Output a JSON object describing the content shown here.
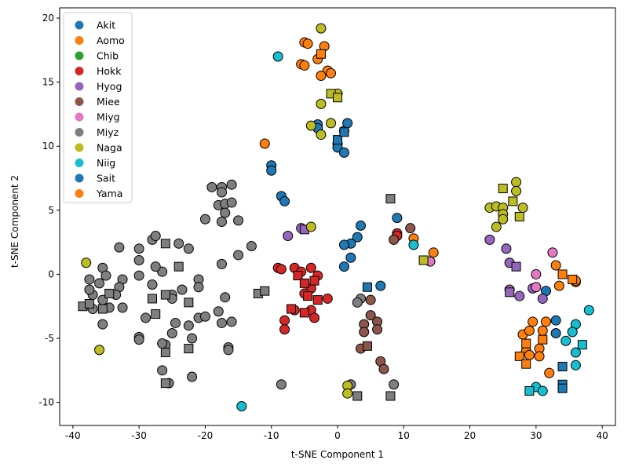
{
  "chart_data": {
    "type": "scatter",
    "title": "",
    "xlabel": "t-SNE Component 1",
    "ylabel": "t-SNE Component 2",
    "xlim": [
      -42,
      42
    ],
    "ylim": [
      -11.8,
      20.8
    ],
    "xticks": [
      "-40",
      "-30",
      "-20",
      "-10",
      "0",
      "10",
      "20",
      "30",
      "40"
    ],
    "yticks": [
      "-10",
      "-5",
      "0",
      "5",
      "10",
      "15",
      "20"
    ],
    "grid": false,
    "legend_position": "top-left",
    "legend": [
      {
        "name": "Akit",
        "color": "#1f77b4"
      },
      {
        "name": "Aomo",
        "color": "#ff7f0e"
      },
      {
        "name": "Chib",
        "color": "#2ca02c"
      },
      {
        "name": "Hokk",
        "color": "#d62728"
      },
      {
        "name": "Hyog",
        "color": "#9467bd"
      },
      {
        "name": "Miee",
        "color": "#8c564b"
      },
      {
        "name": "Miyg",
        "color": "#e377c2"
      },
      {
        "name": "Miyz",
        "color": "#7f7f7f"
      },
      {
        "name": "Naga",
        "color": "#bcbd22"
      },
      {
        "name": "Niig",
        "color": "#17becf"
      },
      {
        "name": "Sait",
        "color": "#1f77b4"
      },
      {
        "name": "Yama",
        "color": "#ff7f0e"
      }
    ],
    "groups": [
      {
        "color": "#7f7f7f",
        "circles": [
          [
            -33,
            2.1
          ],
          [
            -30,
            2
          ],
          [
            -30,
            1.1
          ],
          [
            -28,
            2.7
          ],
          [
            -27.5,
            3
          ],
          [
            -24,
            2.4
          ],
          [
            -22.5,
            2
          ],
          [
            -19,
            6.8
          ],
          [
            -17.5,
            6.8
          ],
          [
            -16,
            7
          ],
          [
            -17.5,
            6.4
          ],
          [
            -18,
            5.4
          ],
          [
            -17,
            5.5
          ],
          [
            -17,
            4.8
          ],
          [
            -16,
            5.6
          ],
          [
            -20,
            4.3
          ],
          [
            -17.5,
            4.1
          ],
          [
            -15,
            4.2
          ],
          [
            -15,
            1.5
          ],
          [
            -13,
            2.2
          ],
          [
            -17.5,
            0.8
          ],
          [
            -21,
            -0.4
          ],
          [
            -21,
            -1
          ],
          [
            -23.5,
            -1.2
          ],
          [
            -25,
            -1.6
          ],
          [
            -25,
            -1.9
          ],
          [
            -26.5,
            0.2
          ],
          [
            -27.5,
            0.6
          ],
          [
            -28,
            -0.8
          ],
          [
            -30,
            -0.1
          ],
          [
            -32.5,
            -0.4
          ],
          [
            -33,
            -1
          ],
          [
            -33.5,
            -1.6
          ],
          [
            -36,
            -0.7
          ],
          [
            -37,
            -1.6
          ],
          [
            -37.5,
            -1.2
          ],
          [
            -37.5,
            -0.4
          ],
          [
            -35.5,
            0.5
          ],
          [
            -35,
            -0.1
          ],
          [
            -34.5,
            -2.6
          ],
          [
            -35.5,
            -2
          ],
          [
            -37,
            -2.7
          ],
          [
            -32.5,
            -2.6
          ],
          [
            -29,
            -3.4
          ],
          [
            -24.5,
            -3.8
          ],
          [
            -22.5,
            -4
          ],
          [
            -21,
            -3.4
          ],
          [
            -20,
            -3.3
          ],
          [
            -18,
            -2.9
          ],
          [
            -17,
            -1.8
          ],
          [
            -17.5,
            -3.8
          ],
          [
            -16,
            -3.7
          ],
          [
            -16.5,
            -5.7
          ],
          [
            -16.5,
            -5.9
          ],
          [
            -22,
            -5
          ],
          [
            -25,
            -4.6
          ],
          [
            -26,
            -5.5
          ],
          [
            -26.5,
            -5.4
          ],
          [
            -26.5,
            -7.5
          ],
          [
            -25.5,
            -8.5
          ],
          [
            -22,
            -8
          ],
          [
            -35.5,
            -3.9
          ],
          [
            -30,
            -4.9
          ],
          [
            -30,
            -5.1
          ],
          [
            -8.5,
            -8.6
          ],
          [
            2,
            -8.6
          ],
          [
            8.5,
            -8.6
          ],
          [
            3.5,
            -1.9
          ],
          [
            3,
            -2.2
          ]
        ],
        "squares": [
          [
            -26,
            2.4
          ],
          [
            -24,
            0.6
          ],
          [
            -26,
            -1.6
          ],
          [
            -28,
            -1.9
          ],
          [
            -22.5,
            -2.2
          ],
          [
            -27.5,
            -3.1
          ],
          [
            -34.5,
            -1.5
          ],
          [
            -35.5,
            -2.7
          ],
          [
            -38.5,
            -2.5
          ],
          [
            -37.5,
            -2.3
          ],
          [
            -22.5,
            -5.8
          ],
          [
            -26,
            -6.1
          ],
          [
            -26,
            -8.5
          ],
          [
            -12,
            -1.5
          ],
          [
            -11,
            -1.3
          ],
          [
            8,
            5.9
          ],
          [
            3,
            -9.5
          ],
          [
            8,
            -9.5
          ]
        ]
      },
      {
        "color": "#1f77b4",
        "circles": [
          [
            -10,
            8.5
          ],
          [
            -10,
            8.1
          ],
          [
            -8.5,
            6.1
          ],
          [
            -8,
            5.7
          ],
          [
            -3,
            11.7
          ],
          [
            -3,
            11.4
          ],
          [
            1,
            11.2
          ],
          [
            1.5,
            11.8
          ],
          [
            0,
            10.2
          ],
          [
            0,
            9.9
          ],
          [
            1,
            9.5
          ],
          [
            3.5,
            3.8
          ],
          [
            3,
            2.9
          ],
          [
            2,
            2.4
          ],
          [
            1,
            2.3
          ],
          [
            2,
            1.3
          ],
          [
            1,
            0.6
          ],
          [
            9,
            4.4
          ],
          [
            6.5,
            -0.9
          ],
          [
            33,
            -4.6
          ],
          [
            33,
            -3.6
          ],
          [
            31.5,
            -1.3
          ]
        ],
        "squares": [
          [
            0,
            10.5
          ],
          [
            1,
            11.1
          ],
          [
            4.5,
            -1
          ],
          [
            34,
            -7.2
          ],
          [
            34,
            -8.6
          ],
          [
            34,
            -8.9
          ]
        ]
      },
      {
        "color": "#ff7f0e",
        "circles": [
          [
            -11,
            10.2
          ],
          [
            -5,
            18.1
          ],
          [
            -4.5,
            18
          ],
          [
            -2,
            17.8
          ],
          [
            -5.5,
            16.4
          ],
          [
            -5,
            16.3
          ],
          [
            -3,
            16.8
          ],
          [
            -1.5,
            15.9
          ],
          [
            -1,
            15.7
          ],
          [
            -2.5,
            15.5
          ],
          [
            11.5,
            2.8
          ],
          [
            14.5,
            1.7
          ],
          [
            33,
            0.7
          ],
          [
            36,
            -0.6
          ],
          [
            36,
            -0.5
          ],
          [
            33.5,
            -0.9
          ],
          [
            28,
            -4.7
          ],
          [
            29.5,
            -3.7
          ],
          [
            31.5,
            -3.7
          ],
          [
            29,
            -4.4
          ],
          [
            30.5,
            -5.8
          ],
          [
            31,
            -4.4
          ],
          [
            28.5,
            -6
          ],
          [
            29,
            -6.3
          ],
          [
            30.5,
            -6.4
          ],
          [
            32,
            -7.7
          ]
        ],
        "squares": [
          [
            -2.5,
            17.2
          ],
          [
            34,
            0
          ],
          [
            35.5,
            -0.4
          ],
          [
            31,
            -5.1
          ],
          [
            28.5,
            -5.4
          ],
          [
            27.5,
            -6.4
          ],
          [
            28.5,
            -7
          ]
        ]
      },
      {
        "color": "#d62728",
        "circles": [
          [
            -9,
            0.5
          ],
          [
            -8.5,
            0.4
          ],
          [
            -6.5,
            0.5
          ],
          [
            -5.5,
            0.2
          ],
          [
            -4,
            0.5
          ],
          [
            -3,
            -0.1
          ],
          [
            -4,
            -1.1
          ],
          [
            -5,
            -1.5
          ],
          [
            -1.5,
            -1.9
          ],
          [
            -8,
            -3.6
          ],
          [
            -8,
            -4.3
          ],
          [
            -6.5,
            -2.8
          ],
          [
            -4,
            -2.8
          ],
          [
            -3.5,
            -3.4
          ],
          [
            9,
            3.2
          ],
          [
            9,
            3
          ]
        ],
        "squares": [
          [
            -6,
            -0.1
          ],
          [
            -3.5,
            -0.5
          ],
          [
            -5,
            -0.7
          ],
          [
            -4.5,
            -1.7
          ],
          [
            -3,
            -2
          ],
          [
            -7,
            -2.7
          ],
          [
            -5,
            -3
          ]
        ]
      },
      {
        "color": "#9467bd",
        "circles": [
          [
            -7.5,
            3
          ],
          [
            -5.5,
            3.6
          ],
          [
            23,
            2.7
          ],
          [
            25.5,
            2
          ],
          [
            26,
            0.9
          ],
          [
            29.5,
            -1.1
          ],
          [
            26,
            -1.2
          ],
          [
            27.5,
            -1.7
          ],
          [
            31,
            -1.9
          ]
        ],
        "squares": [
          [
            -5,
            3.5
          ],
          [
            27,
            0.6
          ],
          [
            26,
            -1.4
          ]
        ]
      },
      {
        "color": "#8c564b",
        "circles": [
          [
            11,
            3.6
          ],
          [
            8.5,
            2.7
          ],
          [
            5,
            -2
          ],
          [
            5,
            -3.2
          ],
          [
            4,
            -3.9
          ],
          [
            4,
            -4.5
          ],
          [
            6,
            -3.7
          ],
          [
            6,
            -4.3
          ],
          [
            3.5,
            -5.8
          ],
          [
            6.5,
            -6.8
          ],
          [
            7,
            -7.4
          ]
        ],
        "squares": [
          [
            4.5,
            -5.6
          ]
        ]
      },
      {
        "color": "#e377c2",
        "circles": [
          [
            14,
            1
          ],
          [
            32.5,
            1.7
          ],
          [
            30,
            0
          ],
          [
            30,
            -1
          ]
        ],
        "squares": []
      },
      {
        "color": "#bcbd22",
        "circles": [
          [
            -2.5,
            19.2
          ],
          [
            -2.5,
            13.3
          ],
          [
            0,
            14.1
          ],
          [
            -4,
            11.6
          ],
          [
            -1,
            11.8
          ],
          [
            -2.5,
            10.9
          ],
          [
            -4,
            3.7
          ],
          [
            23,
            5.2
          ],
          [
            24,
            5.3
          ],
          [
            25,
            5.2
          ],
          [
            25,
            4.7
          ],
          [
            25,
            4.3
          ],
          [
            27,
            7.2
          ],
          [
            27,
            6.5
          ],
          [
            28,
            5.2
          ],
          [
            24,
            3.7
          ],
          [
            -38,
            0.9
          ],
          [
            -36,
            -5.9
          ],
          [
            1.5,
            -8.7
          ],
          [
            1.5,
            -9.3
          ]
        ],
        "squares": [
          [
            -1,
            14.1
          ],
          [
            0,
            13.8
          ],
          [
            25,
            6.7
          ],
          [
            26.5,
            5.7
          ],
          [
            27.5,
            4.5
          ],
          [
            13,
            1.1
          ]
        ]
      },
      {
        "color": "#17becf",
        "circles": [
          [
            -9,
            17
          ],
          [
            11.5,
            2.3
          ],
          [
            38,
            -2.8
          ],
          [
            36,
            -3.9
          ],
          [
            35.5,
            -4.5
          ],
          [
            34.5,
            -5.2
          ],
          [
            36,
            -6.1
          ],
          [
            36,
            -7.1
          ],
          [
            30,
            -8.8
          ],
          [
            31,
            -9.1
          ],
          [
            -14.5,
            -10.3
          ]
        ],
        "squares": [
          [
            37,
            -5.5
          ],
          [
            29,
            -9.1
          ]
        ]
      }
    ]
  }
}
